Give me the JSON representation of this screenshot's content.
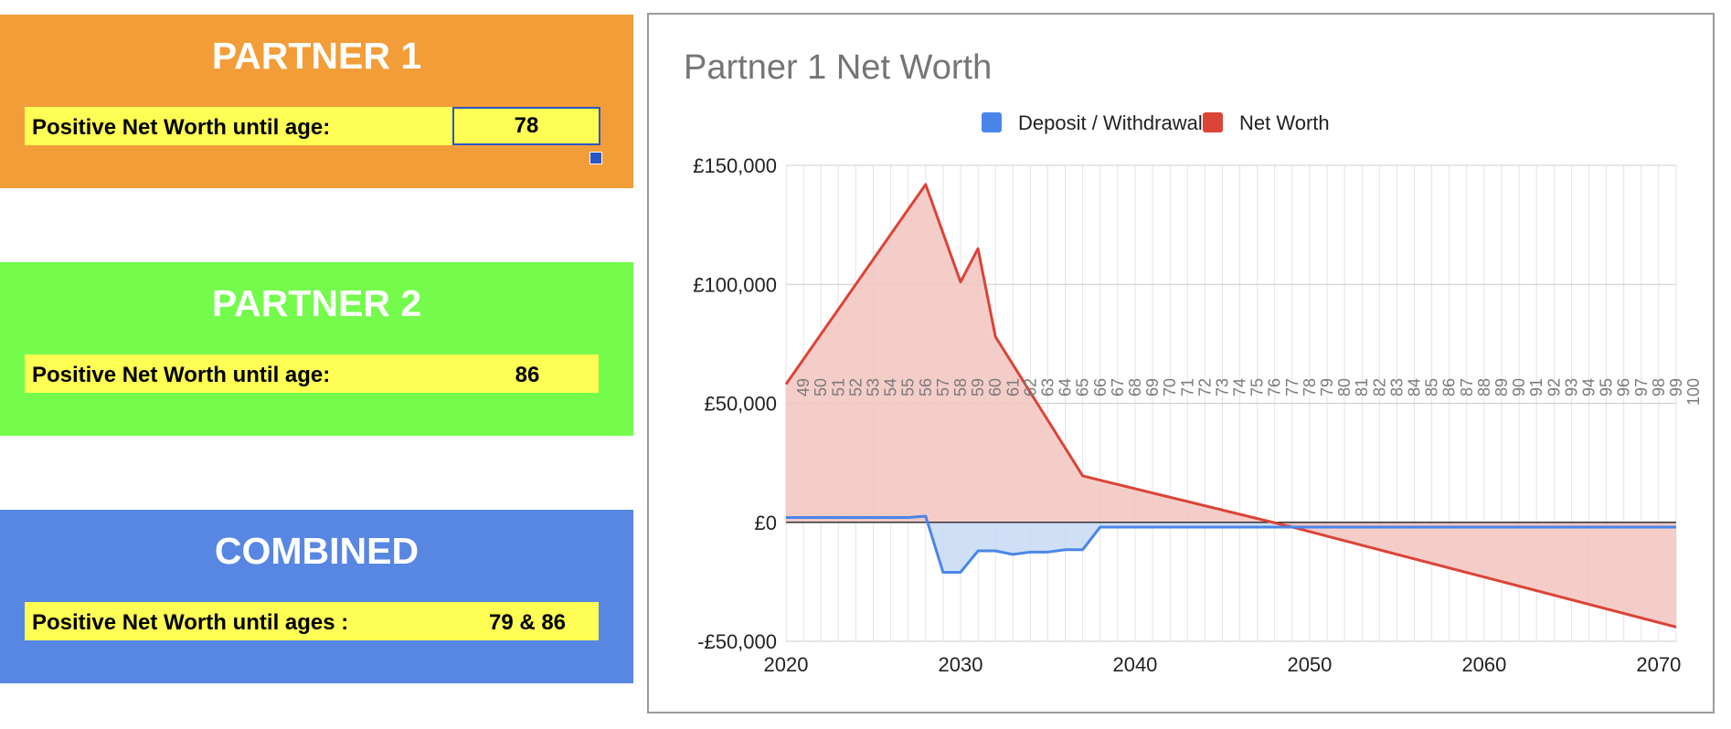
{
  "panels": [
    {
      "title": "PARTNER 1",
      "label": "Positive Net Worth until age:",
      "value": "78",
      "color": "#f39d38"
    },
    {
      "title": "PARTNER 2",
      "label": "Positive Net Worth until age:",
      "value": "86",
      "color": "#74fb4c"
    },
    {
      "title": "COMBINED",
      "label": "Positive Net Worth until ages :",
      "value": "79 & 86",
      "color": "#5886e3"
    }
  ],
  "highlight_color": "#fefe54",
  "chart_data": {
    "type": "area",
    "title": "Partner 1 Net Worth",
    "legend_position": "top",
    "x_ticks": [
      2020,
      2030,
      2040,
      2050,
      2060,
      2070
    ],
    "xlim": [
      2020,
      2071
    ],
    "y_ticks": [
      {
        "value": -50000,
        "label": "-£50,000"
      },
      {
        "value": 0,
        "label": "£0"
      },
      {
        "value": 50000,
        "label": "£50,000"
      },
      {
        "value": 100000,
        "label": "£100,000"
      },
      {
        "value": 150000,
        "label": "£150,000"
      }
    ],
    "ylim": [
      -50000,
      150000
    ],
    "age_labels": [
      49,
      50,
      51,
      52,
      53,
      54,
      55,
      56,
      57,
      58,
      59,
      60,
      61,
      62,
      63,
      64,
      65,
      66,
      67,
      68,
      69,
      70,
      71,
      72,
      73,
      74,
      75,
      76,
      77,
      78,
      79,
      80,
      81,
      82,
      83,
      84,
      85,
      86,
      87,
      88,
      89,
      90,
      91,
      92,
      93,
      94,
      95,
      96,
      97,
      98,
      99,
      100
    ],
    "series": [
      {
        "name": "Deposit / Withdrawal",
        "color": "#4a86e8",
        "fill": "#c6d9f5",
        "x": [
          2020,
          2027,
          2028,
          2029,
          2030,
          2031,
          2032,
          2033,
          2034,
          2035,
          2036,
          2037,
          2038,
          2071
        ],
        "values": [
          2000,
          2000,
          2600,
          -21000,
          -21000,
          -12000,
          -12000,
          -13500,
          -12500,
          -12500,
          -11500,
          -11500,
          -2000,
          -2000
        ]
      },
      {
        "name": "Net Worth",
        "color": "#db4437",
        "fill": "#f2c4c0",
        "x": [
          2020,
          2028,
          2030,
          2031,
          2032,
          2037,
          2049,
          2071
        ],
        "values": [
          58000,
          142000,
          101000,
          115000,
          78000,
          19500,
          -2000,
          -44000
        ]
      }
    ]
  }
}
